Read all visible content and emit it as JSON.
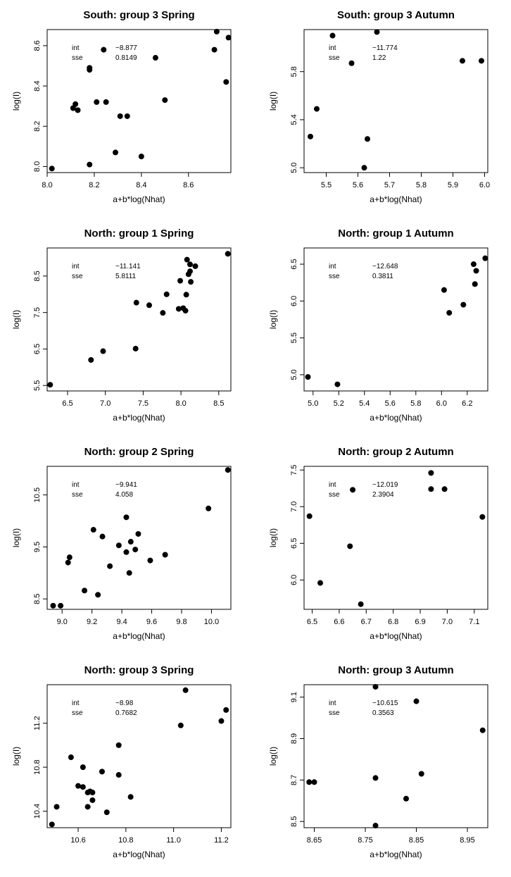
{
  "chart_data": [
    {
      "type": "scatter",
      "title": "South: group 3 Spring",
      "xlabel": "a+b*log(Nhat)",
      "ylabel": "log(I)",
      "xlim": [
        8.0,
        8.78
      ],
      "ylim": [
        7.97,
        8.68
      ],
      "xticks": [
        8.0,
        8.2,
        8.4,
        8.6
      ],
      "xtick_labels": [
        "8.0",
        "8.2",
        "8.4",
        "8.6"
      ],
      "yticks": [
        8.0,
        8.2,
        8.4,
        8.6
      ],
      "ytick_labels": [
        "8.0",
        "8.2",
        "8.4",
        "8.6"
      ],
      "annotation": {
        "int_label": "int",
        "int_value": "−8.877",
        "sse_label": "sse",
        "sse_value": "0.8149"
      },
      "x": [
        8.02,
        8.11,
        8.12,
        8.13,
        8.18,
        8.18,
        8.18,
        8.21,
        8.24,
        8.25,
        8.29,
        8.31,
        8.34,
        8.4,
        8.46,
        8.5,
        8.71,
        8.72,
        8.76,
        8.77
      ],
      "y": [
        7.99,
        8.29,
        8.31,
        8.28,
        8.48,
        8.49,
        8.01,
        8.32,
        8.58,
        8.32,
        8.07,
        8.25,
        8.25,
        8.05,
        8.54,
        8.33,
        8.58,
        8.67,
        8.42,
        8.64
      ]
    },
    {
      "type": "scatter",
      "title": "South: group 3 Autumn",
      "xlabel": "a+b*log(Nhat)",
      "ylabel": "log(I)",
      "xlim": [
        5.43,
        6.01
      ],
      "ylim": [
        4.96,
        6.15
      ],
      "xticks": [
        5.5,
        5.6,
        5.7,
        5.8,
        5.9,
        6.0
      ],
      "xtick_labels": [
        "5.5",
        "5.6",
        "5.7",
        "5.8",
        "5.9",
        "6.0"
      ],
      "yticks": [
        5.0,
        5.4,
        5.8
      ],
      "ytick_labels": [
        "5.0",
        "5.4",
        "5.8"
      ],
      "annotation": {
        "int_label": "int",
        "int_value": "−11.774",
        "sse_label": "sse",
        "sse_value": "1.22"
      },
      "x": [
        5.45,
        5.47,
        5.52,
        5.58,
        5.62,
        5.63,
        5.66,
        5.93,
        5.99
      ],
      "y": [
        5.26,
        5.49,
        6.1,
        5.87,
        5.0,
        5.24,
        6.13,
        5.89,
        5.89
      ]
    },
    {
      "type": "scatter",
      "title": "North: group 1 Spring",
      "xlabel": "a+b*log(Nhat)",
      "ylabel": "log(I)",
      "xlim": [
        6.23,
        8.66
      ],
      "ylim": [
        5.35,
        9.27
      ],
      "xticks": [
        6.5,
        7.0,
        7.5,
        8.0,
        8.5
      ],
      "xtick_labels": [
        "6.5",
        "7.0",
        "7.5",
        "8.0",
        "8.5"
      ],
      "yticks": [
        5.5,
        6.5,
        7.5,
        8.5
      ],
      "ytick_labels": [
        "5.5",
        "6.5",
        "7.5",
        "8.5"
      ],
      "annotation": {
        "int_label": "int",
        "int_value": "−11.141",
        "sse_label": "sse",
        "sse_value": "5.8111"
      },
      "x": [
        6.27,
        6.81,
        6.97,
        7.4,
        7.41,
        7.58,
        7.76,
        7.81,
        7.97,
        7.99,
        8.03,
        8.06,
        8.07,
        8.08,
        8.1,
        8.12,
        8.12,
        8.13,
        8.19,
        8.62
      ],
      "y": [
        5.52,
        6.2,
        6.44,
        6.51,
        7.77,
        7.7,
        7.49,
        8.0,
        7.6,
        8.37,
        7.62,
        7.55,
        7.99,
        8.95,
        8.55,
        8.63,
        8.82,
        8.34,
        8.77,
        9.11
      ]
    },
    {
      "type": "scatter",
      "title": "North: group 1 Autumn",
      "xlabel": "a+b*log(Nhat)",
      "ylabel": "log(I)",
      "xlim": [
        4.93,
        6.36
      ],
      "ylim": [
        4.78,
        6.72
      ],
      "xticks": [
        5.0,
        5.2,
        5.4,
        5.6,
        5.8,
        6.0,
        6.2
      ],
      "xtick_labels": [
        "5.0",
        "5.2",
        "5.4",
        "5.6",
        "5.8",
        "6.0",
        "6.2"
      ],
      "yticks": [
        5.0,
        5.5,
        6.0,
        6.5
      ],
      "ytick_labels": [
        "5.0",
        "5.5",
        "6.0",
        "6.5"
      ],
      "annotation": {
        "int_label": "int",
        "int_value": "−12.648",
        "sse_label": "sse",
        "sse_value": "0.3811"
      },
      "x": [
        4.96,
        5.19,
        6.02,
        6.06,
        6.17,
        6.25,
        6.26,
        6.27,
        6.34
      ],
      "y": [
        4.97,
        4.87,
        6.15,
        5.84,
        5.95,
        6.5,
        6.23,
        6.41,
        6.58
      ]
    },
    {
      "type": "scatter",
      "title": "North: group 2 Spring",
      "xlabel": "a+b*log(Nhat)",
      "ylabel": "log(I)",
      "xlim": [
        8.9,
        10.13
      ],
      "ylim": [
        8.3,
        11.05
      ],
      "xticks": [
        9.0,
        9.2,
        9.4,
        9.6,
        9.8,
        10.0
      ],
      "xtick_labels": [
        "9.0",
        "9.2",
        "9.4",
        "9.6",
        "9.8",
        "10.0"
      ],
      "yticks": [
        8.5,
        9.5,
        10.5
      ],
      "ytick_labels": [
        "8.5",
        "9.5",
        "10.5"
      ],
      "annotation": {
        "int_label": "int",
        "int_value": "−9.941",
        "sse_label": "sse",
        "sse_value": "4.058"
      },
      "x": [
        8.94,
        8.99,
        9.04,
        9.05,
        9.15,
        9.21,
        9.24,
        9.27,
        9.32,
        9.38,
        9.43,
        9.43,
        9.45,
        9.46,
        9.49,
        9.51,
        9.59,
        9.69,
        9.98,
        10.11
      ],
      "y": [
        8.37,
        8.37,
        9.2,
        9.3,
        8.66,
        9.83,
        8.58,
        9.7,
        9.13,
        9.53,
        9.4,
        10.07,
        9.0,
        9.6,
        9.45,
        9.75,
        9.24,
        9.35,
        10.24,
        10.98
      ]
    },
    {
      "type": "scatter",
      "title": "North: group 2 Autumn",
      "xlabel": "a+b*log(Nhat)",
      "ylabel": "log(I)",
      "xlim": [
        6.47,
        7.15
      ],
      "ylim": [
        5.6,
        7.55
      ],
      "xticks": [
        6.5,
        6.6,
        6.7,
        6.8,
        6.9,
        7.0,
        7.1
      ],
      "xtick_labels": [
        "6.5",
        "6.6",
        "6.7",
        "6.8",
        "6.9",
        "7.0",
        "7.1"
      ],
      "yticks": [
        6.0,
        6.5,
        7.0,
        7.5
      ],
      "ytick_labels": [
        "6.0",
        "6.5",
        "7.0",
        "7.5"
      ],
      "annotation": {
        "int_label": "int",
        "int_value": "−12.019",
        "sse_label": "sse",
        "sse_value": "2.3904"
      },
      "x": [
        6.49,
        6.53,
        6.64,
        6.65,
        6.68,
        6.94,
        6.94,
        6.99,
        7.13
      ],
      "y": [
        6.87,
        5.96,
        6.46,
        7.23,
        5.67,
        7.46,
        7.24,
        7.24,
        6.86
      ]
    },
    {
      "type": "scatter",
      "title": "North: group 3 Spring",
      "xlabel": "a+b*log(Nhat)",
      "ylabel": "log(I)",
      "xlim": [
        10.47,
        11.24
      ],
      "ylim": [
        10.25,
        11.55
      ],
      "xticks": [
        10.6,
        10.8,
        11.0,
        11.2
      ],
      "xtick_labels": [
        "10.6",
        "10.8",
        "11.0",
        "11.2"
      ],
      "yticks": [
        10.4,
        10.8,
        11.2
      ],
      "ytick_labels": [
        "10.4",
        "10.8",
        "11.2"
      ],
      "annotation": {
        "int_label": "int",
        "int_value": "−8.98",
        "sse_label": "sse",
        "sse_value": "0.7682"
      },
      "x": [
        10.49,
        10.51,
        10.57,
        10.6,
        10.62,
        10.62,
        10.64,
        10.64,
        10.65,
        10.66,
        10.66,
        10.7,
        10.72,
        10.77,
        10.77,
        10.82,
        11.03,
        11.05,
        11.2,
        11.22
      ],
      "y": [
        10.28,
        10.44,
        10.89,
        10.63,
        10.8,
        10.62,
        10.57,
        10.44,
        10.58,
        10.57,
        10.5,
        10.76,
        10.39,
        11.0,
        10.73,
        10.53,
        11.18,
        11.5,
        11.22,
        11.32
      ]
    },
    {
      "type": "scatter",
      "title": "North: group 3 Autumn",
      "xlabel": "a+b*log(Nhat)",
      "ylabel": "log(I)",
      "xlim": [
        8.63,
        8.99
      ],
      "ylim": [
        8.47,
        9.16
      ],
      "xticks": [
        8.65,
        8.75,
        8.85,
        8.95
      ],
      "xtick_labels": [
        "8.65",
        "8.75",
        "8.85",
        "8.95"
      ],
      "yticks": [
        8.5,
        8.7,
        8.9,
        9.1
      ],
      "ytick_labels": [
        "8.5",
        "8.7",
        "8.9",
        "9.1"
      ],
      "annotation": {
        "int_label": "int",
        "int_value": "−10.615",
        "sse_label": "sse",
        "sse_value": "0.3563"
      },
      "x": [
        8.64,
        8.65,
        8.77,
        8.77,
        8.77,
        8.83,
        8.85,
        8.86,
        8.98
      ],
      "y": [
        8.69,
        8.69,
        8.71,
        8.48,
        9.15,
        8.61,
        9.08,
        8.73,
        8.94
      ]
    }
  ]
}
